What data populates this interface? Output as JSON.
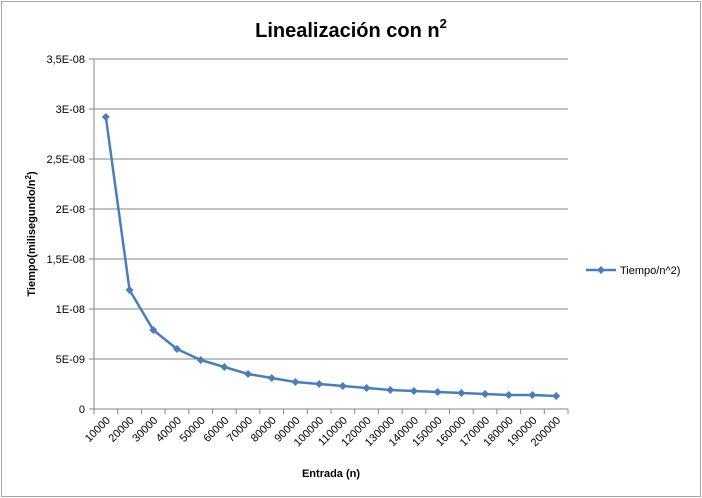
{
  "chart_data": {
    "type": "line",
    "title": "Linealización con n",
    "title_superscript": "2",
    "xlabel": "Entrada (n)",
    "ylabel": "Tiempo(milisegundo/n",
    "ylabel_superscript": "2",
    "ylabel_suffix": ")",
    "ylim": [
      0,
      3.5e-08
    ],
    "yticks": [
      0,
      5e-09,
      1e-08,
      1.5e-08,
      2e-08,
      2.5e-08,
      3e-08,
      3.5e-08
    ],
    "ytick_labels": [
      "0",
      "5E-09",
      "1E-08",
      "1,5E-08",
      "2E-08",
      "2,5E-08",
      "3E-08",
      "3,5E-08"
    ],
    "categories": [
      "10000",
      "20000",
      "30000",
      "40000",
      "50000",
      "60000",
      "70000",
      "80000",
      "90000",
      "100000",
      "110000",
      "120000",
      "130000",
      "140000",
      "150000",
      "160000",
      "170000",
      "180000",
      "190000",
      "200000"
    ],
    "series": [
      {
        "name": "Tiempo/n^2)",
        "color": "#4a7ebb",
        "values": [
          2.92e-08,
          1.19e-08,
          7.9e-09,
          6e-09,
          4.9e-09,
          4.2e-09,
          3.5e-09,
          3.1e-09,
          2.7e-09,
          2.5e-09,
          2.3e-09,
          2.1e-09,
          1.9e-09,
          1.8e-09,
          1.7e-09,
          1.6e-09,
          1.5e-09,
          1.4e-09,
          1.4e-09,
          1.3e-09
        ]
      }
    ],
    "grid": true,
    "legend_position": "right"
  }
}
